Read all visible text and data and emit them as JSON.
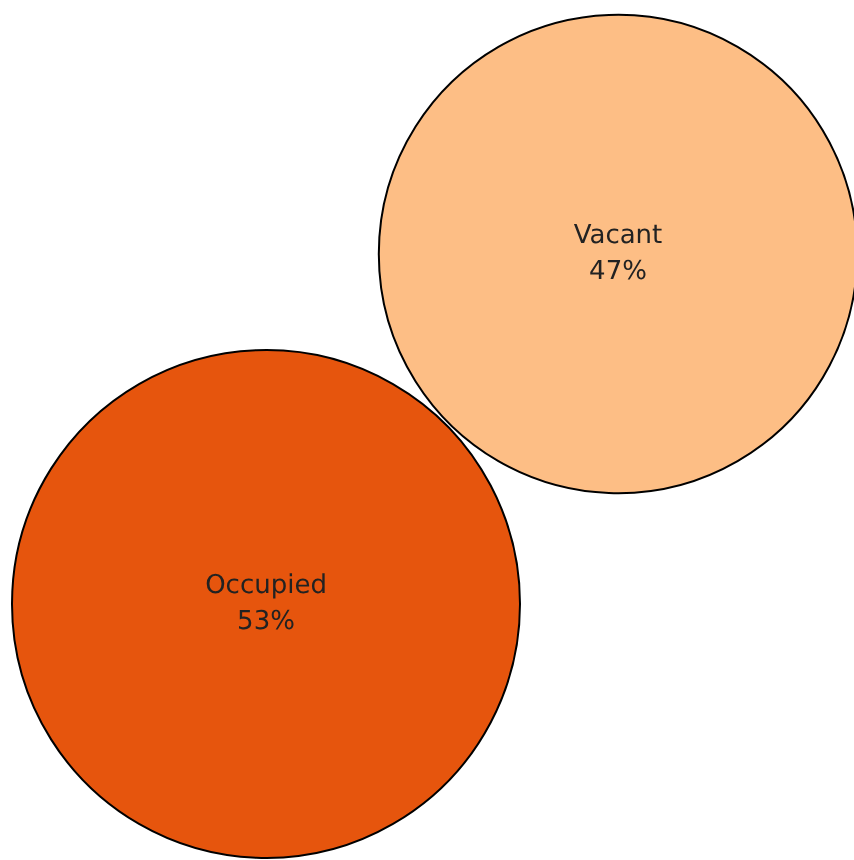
{
  "chart_data": {
    "type": "other",
    "categories": [
      "Occupied",
      "Vacant"
    ],
    "values": [
      53,
      47
    ],
    "value_labels": [
      "53%",
      "47%"
    ],
    "colors": [
      "#e6550d",
      "#fdbe85"
    ]
  }
}
